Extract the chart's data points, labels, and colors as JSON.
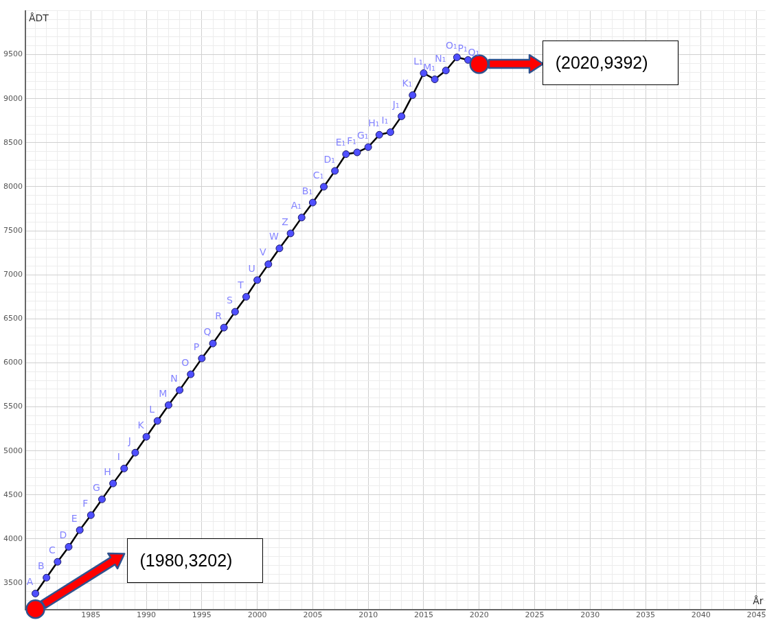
{
  "chart_data": {
    "type": "line",
    "xlabel": "År",
    "ylabel": "ÅDT",
    "x": [
      1980,
      1981,
      1982,
      1983,
      1984,
      1985,
      1986,
      1987,
      1988,
      1989,
      1990,
      1991,
      1992,
      1993,
      1994,
      1995,
      1996,
      1997,
      1998,
      1999,
      2000,
      2001,
      2002,
      2003,
      2004,
      2005,
      2006,
      2007,
      2008,
      2009,
      2010,
      2011,
      2012,
      2013,
      2014,
      2015,
      2016,
      2017,
      2018,
      2019,
      2020
    ],
    "series": [
      {
        "color": "#000000",
        "colors": [
          "#4f4fff",
          "#4f4fff",
          "#4f4fff",
          "#4f4fff",
          "#4f4fff",
          "#4f4fff",
          "#4f4fff",
          "#4f4fff",
          "#4f4fff",
          "#4f4fff",
          "#4f4fff",
          "#4f4fff",
          "#4f4fff",
          "#4f4fff",
          "#4f4fff",
          "#4f4fff",
          "#4f4fff",
          "#4f4fff",
          "#4f4fff",
          "#4f4fff",
          "#4f4fff",
          "#4f4fff",
          "#4f4fff",
          "#4f4fff",
          "#4f4fff",
          "#4f4fff",
          "#4f4fff",
          "#4f4fff",
          "#4f4fff",
          "#4f4fff",
          "#4f4fff",
          "#4f4fff",
          "#4f4fff",
          "#4f4fff",
          "#4f4fff",
          "#4f4fff",
          "#4f4fff",
          "#4f4fff",
          "#4f4fff",
          "#4f4fff",
          "#4f4fff"
        ],
        "values": [
          3380,
          3560,
          3740,
          3910,
          4100,
          4270,
          4450,
          4630,
          4800,
          4980,
          5160,
          5340,
          5520,
          5690,
          5870,
          6050,
          6220,
          6400,
          6580,
          6750,
          6940,
          7120,
          7300,
          7470,
          7650,
          7820,
          8000,
          8180,
          8370,
          8390,
          8450,
          8590,
          8620,
          8800,
          9040,
          9290,
          9220,
          9320,
          9470,
          9440,
          9392
        ],
        "value_labels": [
          "A",
          "B",
          "C",
          "D",
          "E",
          "F",
          "G",
          "H",
          "I",
          "J",
          "K",
          "L",
          "M",
          "N",
          "O",
          "P",
          "Q",
          "R",
          "S",
          "T",
          "U",
          "V",
          "W",
          "Z",
          "A₁",
          "B₁",
          "C₁",
          "D₁",
          "E₁",
          "F₁",
          "G₁",
          "H₁",
          "I₁",
          "J₁",
          "K₁",
          "L₁",
          "M₁",
          "N₁",
          "O₁",
          "P₁",
          "Q₁"
        ]
      },
      {
        "type": "scatter",
        "color": "#ff0000",
        "x": [
          1980,
          2020
        ],
        "values": [
          3202,
          9392
        ]
      }
    ],
    "xlim": [
      1979.1,
      2045.8
    ],
    "ylim": [
      3200,
      10000
    ],
    "xticks": [
      {
        "value": 1980,
        "label": null
      },
      {
        "value": 1981,
        "label": null
      },
      {
        "value": 1982,
        "label": null
      },
      {
        "value": 1983,
        "label": null
      },
      {
        "value": 1984,
        "label": null
      },
      1985,
      {
        "value": 1986,
        "label": null
      },
      {
        "value": 1987,
        "label": null
      },
      {
        "value": 1988,
        "label": null
      },
      {
        "value": 1989,
        "label": null
      },
      1990,
      {
        "value": 1991,
        "label": null
      },
      {
        "value": 1992,
        "label": null
      },
      {
        "value": 1993,
        "label": null
      },
      {
        "value": 1994,
        "label": null
      },
      1995,
      {
        "value": 1996,
        "label": null
      },
      {
        "value": 1997,
        "label": null
      },
      {
        "value": 1998,
        "label": null
      },
      {
        "value": 1999,
        "label": null
      },
      2000,
      {
        "value": 2001,
        "label": null
      },
      {
        "value": 2002,
        "label": null
      },
      {
        "value": 2003,
        "label": null
      },
      {
        "value": 2004,
        "label": null
      },
      2005,
      {
        "value": 2006,
        "label": null
      },
      {
        "value": 2007,
        "label": null
      },
      {
        "value": 2008,
        "label": null
      },
      {
        "value": 2009,
        "label": null
      },
      2010,
      {
        "value": 2011,
        "label": null
      },
      {
        "value": 2012,
        "label": null
      },
      {
        "value": 2013,
        "label": null
      },
      {
        "value": 2014,
        "label": null
      },
      2015,
      {
        "value": 2016,
        "label": null
      },
      {
        "value": 2017,
        "label": null
      },
      {
        "value": 2018,
        "label": null
      },
      {
        "value": 2019,
        "label": null
      },
      2020,
      {
        "value": 2021,
        "label": null
      },
      {
        "value": 2022,
        "label": null
      },
      {
        "value": 2023,
        "label": null
      },
      {
        "value": 2024,
        "label": null
      },
      2025,
      {
        "value": 2026,
        "label": null
      },
      {
        "value": 2027,
        "label": null
      },
      {
        "value": 2028,
        "label": null
      },
      {
        "value": 2029,
        "label": null
      },
      2030,
      {
        "value": 2031,
        "label": null
      },
      {
        "value": 2032,
        "label": null
      },
      {
        "value": 2033,
        "label": null
      },
      {
        "value": 2034,
        "label": null
      },
      2035,
      {
        "value": 2036,
        "label": null
      },
      {
        "value": 2037,
        "label": null
      },
      {
        "value": 2038,
        "label": null
      },
      {
        "value": 2039,
        "label": null
      },
      2040,
      {
        "value": 2041,
        "label": null
      },
      {
        "value": 2042,
        "label": null
      },
      {
        "value": 2043,
        "label": null
      },
      {
        "value": 2044,
        "label": null
      },
      2045
    ],
    "yticks": [
      {
        "value": 3300,
        "label": null
      },
      {
        "value": 3400,
        "label": null
      },
      3500,
      {
        "value": 3600,
        "label": null
      },
      {
        "value": 3700,
        "label": null
      },
      {
        "value": 3800,
        "label": null
      },
      {
        "value": 3900,
        "label": null
      },
      4000,
      {
        "value": 4100,
        "label": null
      },
      {
        "value": 4200,
        "label": null
      },
      {
        "value": 4300,
        "label": null
      },
      {
        "value": 4400,
        "label": null
      },
      4500,
      {
        "value": 4600,
        "label": null
      },
      {
        "value": 4700,
        "label": null
      },
      {
        "value": 4800,
        "label": null
      },
      {
        "value": 4900,
        "label": null
      },
      5000,
      {
        "value": 5100,
        "label": null
      },
      {
        "value": 5200,
        "label": null
      },
      {
        "value": 5300,
        "label": null
      },
      {
        "value": 5400,
        "label": null
      },
      5500,
      {
        "value": 5600,
        "label": null
      },
      {
        "value": 5700,
        "label": null
      },
      {
        "value": 5800,
        "label": null
      },
      {
        "value": 5900,
        "label": null
      },
      6000,
      {
        "value": 6100,
        "label": null
      },
      {
        "value": 6200,
        "label": null
      },
      {
        "value": 6300,
        "label": null
      },
      {
        "value": 6400,
        "label": null
      },
      6500,
      {
        "value": 6600,
        "label": null
      },
      {
        "value": 6700,
        "label": null
      },
      {
        "value": 6800,
        "label": null
      },
      {
        "value": 6900,
        "label": null
      },
      7000,
      {
        "value": 7100,
        "label": null
      },
      {
        "value": 7200,
        "label": null
      },
      {
        "value": 7300,
        "label": null
      },
      {
        "value": 7400,
        "label": null
      },
      7500,
      {
        "value": 7600,
        "label": null
      },
      {
        "value": 7700,
        "label": null
      },
      {
        "value": 7800,
        "label": null
      },
      {
        "value": 7900,
        "label": null
      },
      8000,
      {
        "value": 8100,
        "label": null
      },
      {
        "value": 8200,
        "label": null
      },
      {
        "value": 8300,
        "label": null
      },
      {
        "value": 8400,
        "label": null
      },
      8500,
      {
        "value": 8600,
        "label": null
      },
      {
        "value": 8700,
        "label": null
      },
      {
        "value": 8800,
        "label": null
      },
      {
        "value": 8900,
        "label": null
      },
      9000,
      {
        "value": 9100,
        "label": null
      },
      {
        "value": 9200,
        "label": null
      },
      {
        "value": 9300,
        "label": null
      },
      {
        "value": 9400,
        "label": null
      },
      9500,
      {
        "value": 9600,
        "label": null
      },
      {
        "value": 9700,
        "label": null
      },
      {
        "value": 9800,
        "label": null
      },
      {
        "value": 9900,
        "label": null
      },
      {
        "value": 10000,
        "label": null
      }
    ],
    "grid": true,
    "legend": false,
    "marker": "circle",
    "annotations": [
      "(1980,3202)",
      "(2020,9392)"
    ]
  }
}
